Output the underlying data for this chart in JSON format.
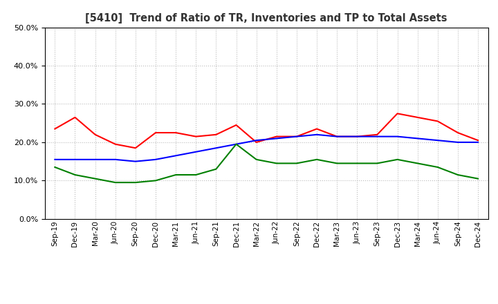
{
  "title": "[5410]  Trend of Ratio of TR, Inventories and TP to Total Assets",
  "x_labels": [
    "Sep-19",
    "Dec-19",
    "Mar-20",
    "Jun-20",
    "Sep-20",
    "Dec-20",
    "Mar-21",
    "Jun-21",
    "Sep-21",
    "Dec-21",
    "Mar-22",
    "Jun-22",
    "Sep-22",
    "Dec-22",
    "Mar-23",
    "Jun-23",
    "Sep-23",
    "Dec-23",
    "Mar-24",
    "Jun-24",
    "Sep-24",
    "Dec-24"
  ],
  "trade_receivables": [
    0.235,
    0.265,
    0.22,
    0.195,
    0.185,
    0.225,
    0.225,
    0.215,
    0.22,
    0.245,
    0.2,
    0.215,
    0.215,
    0.235,
    0.215,
    0.215,
    0.22,
    0.275,
    0.265,
    0.255,
    0.225,
    0.205
  ],
  "inventories": [
    0.155,
    0.155,
    0.155,
    0.155,
    0.15,
    0.155,
    0.165,
    0.175,
    0.185,
    0.195,
    0.205,
    0.21,
    0.215,
    0.22,
    0.215,
    0.215,
    0.215,
    0.215,
    0.21,
    0.205,
    0.2,
    0.2
  ],
  "trade_payables": [
    0.135,
    0.115,
    0.105,
    0.095,
    0.095,
    0.1,
    0.115,
    0.115,
    0.13,
    0.195,
    0.155,
    0.145,
    0.145,
    0.155,
    0.145,
    0.145,
    0.145,
    0.155,
    0.145,
    0.135,
    0.115,
    0.105
  ],
  "tr_color": "#ff0000",
  "inv_color": "#0000ff",
  "tp_color": "#008000",
  "ylim": [
    0.0,
    0.5
  ],
  "yticks": [
    0.0,
    0.1,
    0.2,
    0.3,
    0.4,
    0.5
  ],
  "background_color": "#ffffff",
  "grid_color": "#bbbbbb"
}
